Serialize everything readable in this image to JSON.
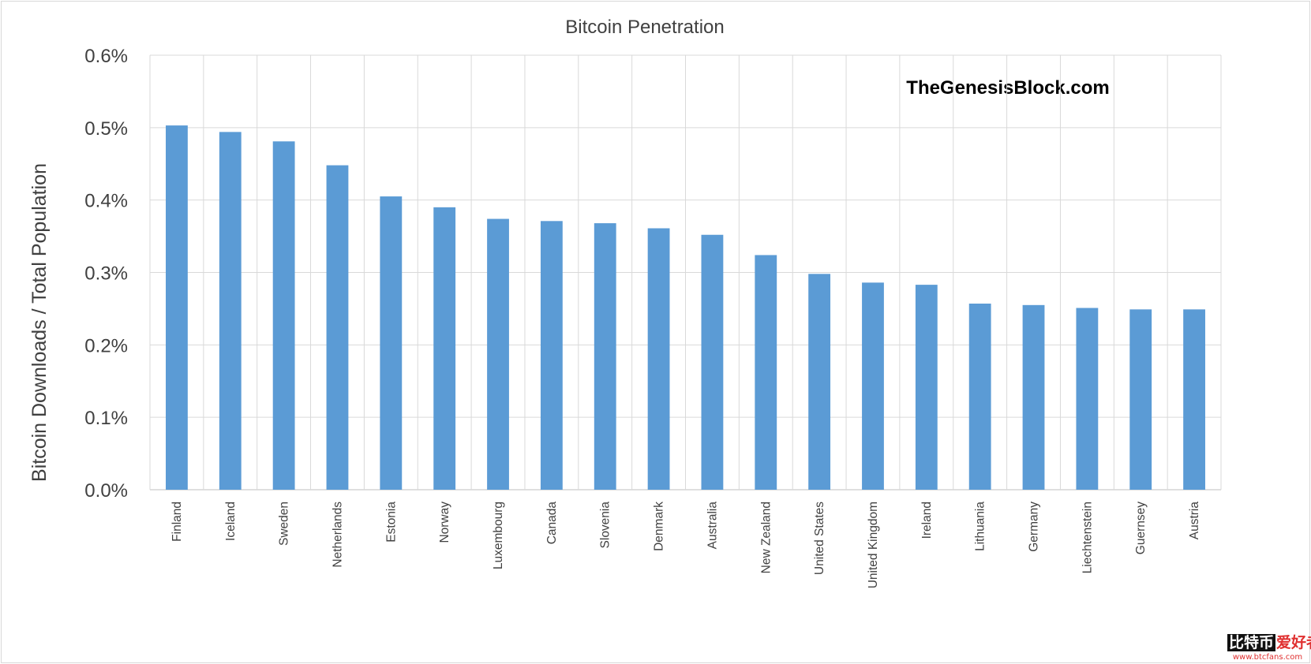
{
  "chart_data": {
    "type": "bar",
    "title": "Bitcoin Penetration",
    "ylabel": "Bitcoin Downloads / Total Population",
    "xlabel": "",
    "categories": [
      "Finland",
      "Iceland",
      "Sweden",
      "Netherlands",
      "Estonia",
      "Norway",
      "Luxembourg",
      "Canada",
      "Slovenia",
      "Denmark",
      "Australia",
      "New Zealand",
      "United States",
      "United Kingdom",
      "Ireland",
      "Lithuania",
      "Germany",
      "Liechtenstein",
      "Guernsey",
      "Austria"
    ],
    "series": [
      {
        "values": [
          0.503,
          0.494,
          0.481,
          0.448,
          0.405,
          0.39,
          0.374,
          0.371,
          0.368,
          0.361,
          0.352,
          0.324,
          0.298,
          0.286,
          0.283,
          0.257,
          0.255,
          0.251,
          0.249,
          0.249
        ]
      }
    ],
    "ylim": [
      0,
      0.6
    ],
    "y_ticks": [
      0,
      0.1,
      0.2,
      0.3,
      0.4,
      0.5,
      0.6
    ],
    "y_tick_labels": [
      "0.0%",
      "0.1%",
      "0.2%",
      "0.3%",
      "0.4%",
      "0.5%",
      "0.6%"
    ],
    "unit": "%",
    "grid": true,
    "legend": "none",
    "bar_color": "#5b9bd5",
    "annotation": "TheGenesisBlock.com"
  },
  "watermark": {
    "line1_part1": "比特币",
    "line1_part2": "爱好者",
    "url": "www.btcfans.com"
  }
}
